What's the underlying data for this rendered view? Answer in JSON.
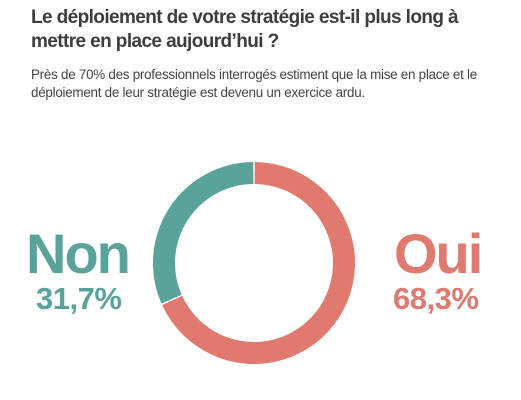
{
  "header": {
    "title": "Le déploiement de votre stratégie est-il plus long à mettre en place aujourd’hui ?",
    "subtitle": "Près de 70% des professionnels interrogés estiment que la mise en place et le déploiement de leur stratégie est devenu un exercice ardu."
  },
  "chart_data": {
    "type": "pie",
    "variant": "donut",
    "title": "Le déploiement de votre stratégie est-il plus long à mettre en place aujourd’hui ?",
    "categories": [
      "Non",
      "Oui"
    ],
    "values": [
      31.7,
      68.3
    ],
    "value_labels": [
      "31,7%",
      "68,3%"
    ],
    "colors": [
      "#5aa39a",
      "#e07a6f"
    ],
    "start": "top, clockwise from Oui",
    "legend": "none"
  }
}
